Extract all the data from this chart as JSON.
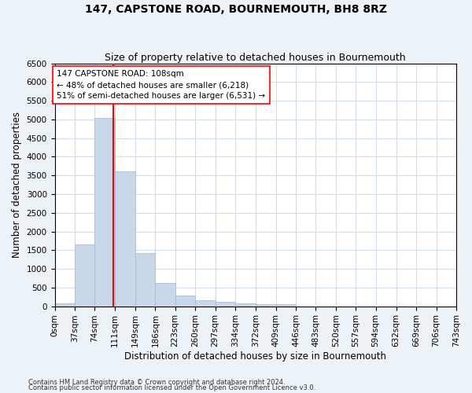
{
  "title": "147, CAPSTONE ROAD, BOURNEMOUTH, BH8 8RZ",
  "subtitle": "Size of property relative to detached houses in Bournemouth",
  "xlabel": "Distribution of detached houses by size in Bournemouth",
  "ylabel": "Number of detached properties",
  "bar_color": "#c8d8e8",
  "bar_edge_color": "#a0b8d0",
  "grid_color": "#c8d4e0",
  "vline_x": 108,
  "vline_color": "red",
  "annotation_line1": "147 CAPSTONE ROAD: 108sqm",
  "annotation_line2": "← 48% of detached houses are smaller (6,218)",
  "annotation_line3": "51% of semi-detached houses are larger (6,531) →",
  "annotation_box_color": "white",
  "annotation_box_edge_color": "red",
  "footer1": "Contains HM Land Registry data © Crown copyright and database right 2024.",
  "footer2": "Contains public sector information licensed under the Open Government Licence v3.0.",
  "bin_edges": [
    0,
    37,
    74,
    111,
    149,
    186,
    223,
    260,
    297,
    334,
    372,
    409,
    446,
    483,
    520,
    557,
    594,
    632,
    669,
    706,
    743
  ],
  "bin_counts": [
    75,
    1650,
    5050,
    3600,
    1420,
    620,
    290,
    150,
    110,
    75,
    60,
    50,
    0,
    0,
    0,
    0,
    0,
    0,
    0,
    0
  ],
  "ylim": [
    0,
    6500
  ],
  "xlim": [
    0,
    743
  ],
  "yticks": [
    0,
    500,
    1000,
    1500,
    2000,
    2500,
    3000,
    3500,
    4000,
    4500,
    5000,
    5500,
    6000,
    6500
  ],
  "background_color": "#edf2f7",
  "plot_bg_color": "white",
  "title_fontsize": 10,
  "subtitle_fontsize": 9,
  "xlabel_fontsize": 8.5,
  "ylabel_fontsize": 8.5,
  "tick_fontsize": 7.5,
  "annotation_fontsize": 7.5,
  "footer_fontsize": 6
}
